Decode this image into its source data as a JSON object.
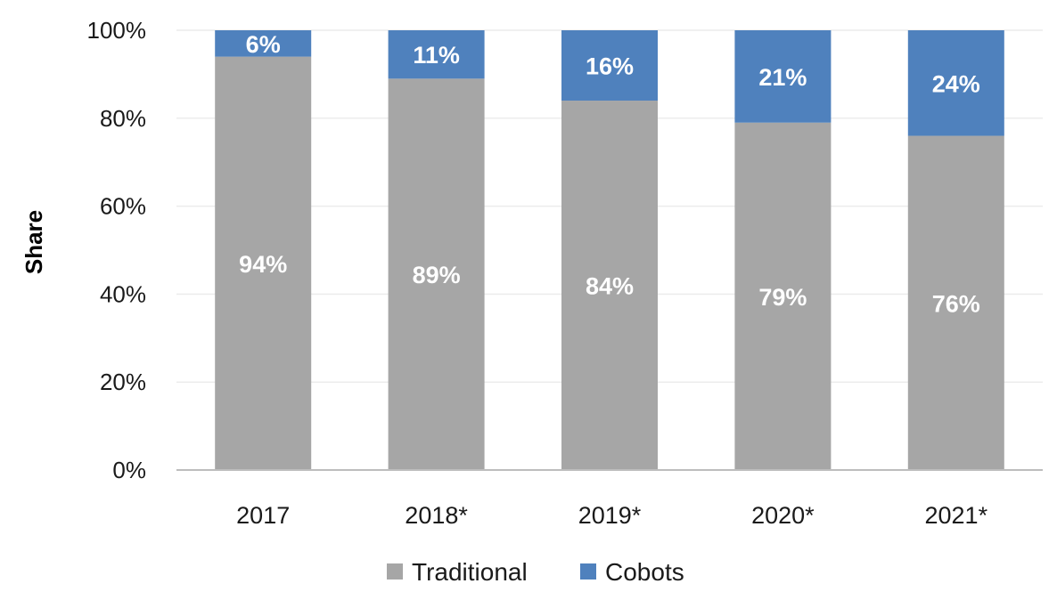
{
  "chart_data": {
    "type": "bar",
    "stacked": true,
    "title": "",
    "xlabel": "",
    "ylabel": "Share",
    "ylim": [
      0,
      100
    ],
    "y_ticks": [
      "0%",
      "20%",
      "40%",
      "60%",
      "80%",
      "100%"
    ],
    "y_tick_values": [
      0,
      20,
      40,
      60,
      80,
      100
    ],
    "categories": [
      "2017",
      "2018*",
      "2019*",
      "2020*",
      "2021*"
    ],
    "series": [
      {
        "name": "Traditional",
        "color": "#a6a6a6",
        "values": [
          94,
          89,
          84,
          79,
          76
        ],
        "labels": [
          "94%",
          "89%",
          "84%",
          "79%",
          "76%"
        ]
      },
      {
        "name": "Cobots",
        "color": "#4f81bd",
        "values": [
          6,
          11,
          16,
          21,
          24
        ],
        "labels": [
          "6%",
          "11%",
          "16%",
          "21%",
          "24%"
        ]
      }
    ],
    "grid": true,
    "legend_position": "bottom"
  }
}
